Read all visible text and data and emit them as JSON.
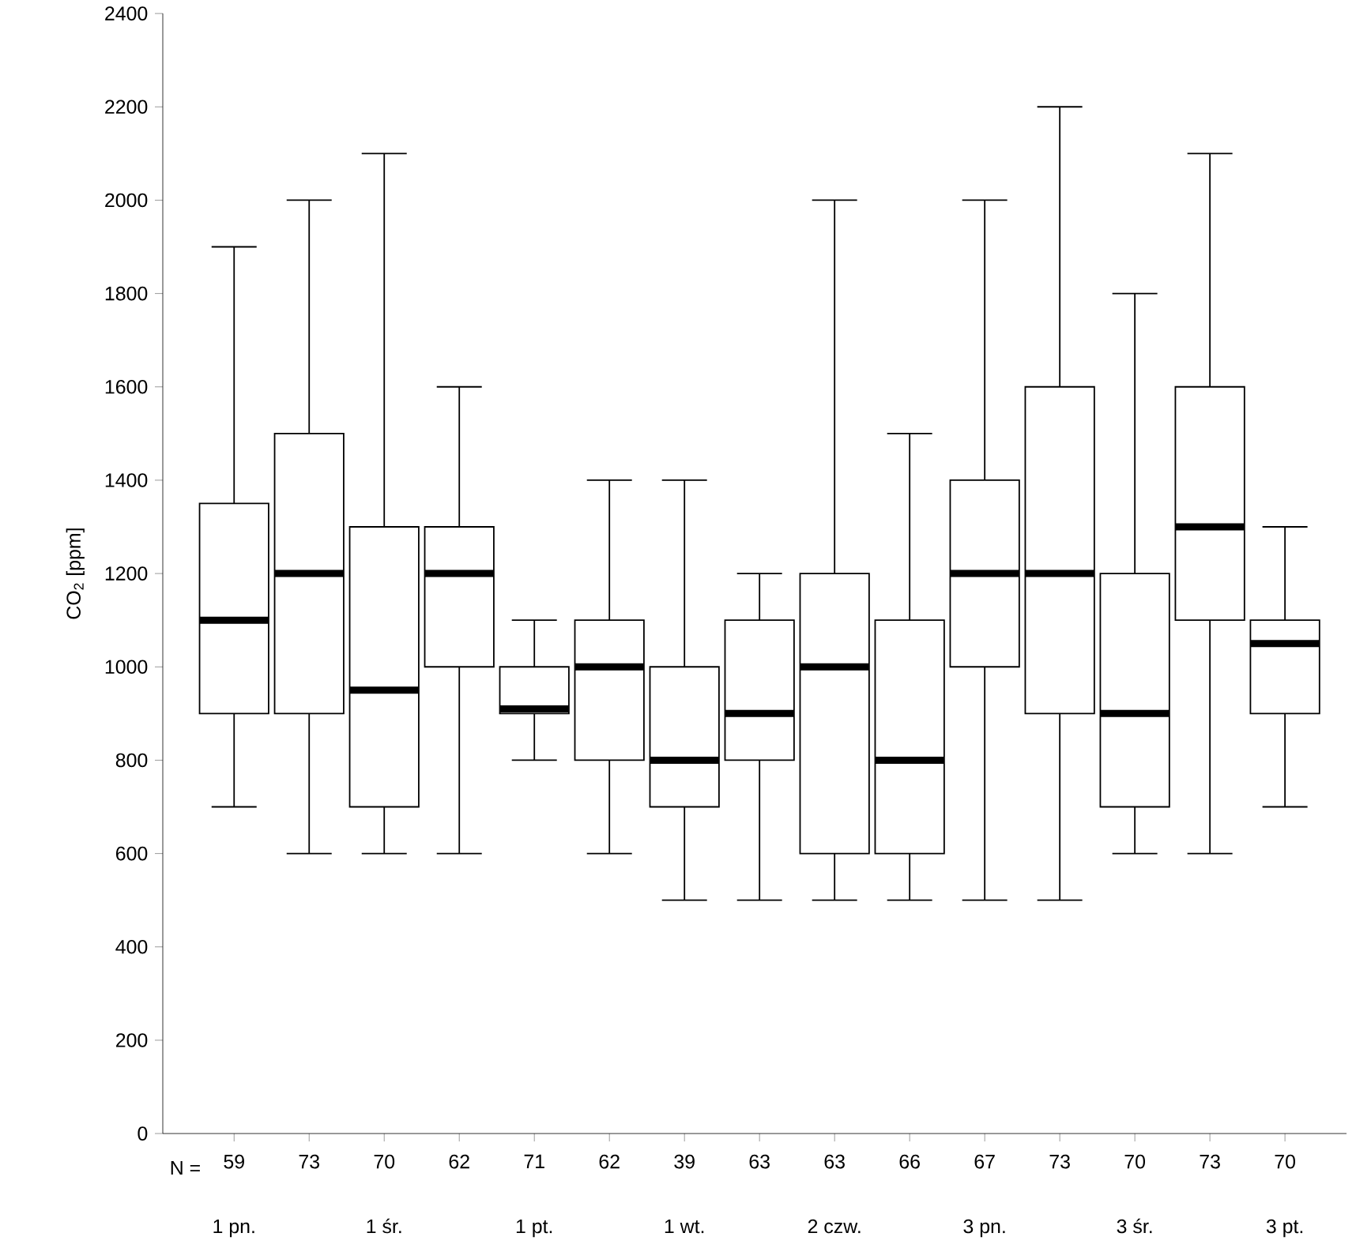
{
  "chart_data": {
    "type": "box",
    "ylabel": "CO$_{2}$ [ppm]",
    "categories": [
      "59",
      "73",
      "70",
      "62",
      "71",
      "62",
      "39",
      "63",
      "63",
      "66",
      "67",
      "73",
      "70",
      "73",
      "70"
    ],
    "annotations": [
      "N =",
      "1 pn.",
      "1 śr.",
      "1 pt.",
      "1 wt.",
      "2 czw.",
      "3 pn.",
      "3 śr.",
      "3 pt."
    ],
    "ylim": [
      0,
      2400
    ],
    "yticks": [
      0,
      200,
      400,
      600,
      800,
      1000,
      1200,
      1400,
      1600,
      1800,
      2000,
      2200,
      2400
    ],
    "grid": false,
    "boxes": [
      {
        "low": 700,
        "q1": 900,
        "median": 1100,
        "q3": 1350,
        "high": 1900
      },
      {
        "low": 600,
        "q1": 900,
        "median": 1200,
        "q3": 1500,
        "high": 2000
      },
      {
        "low": 600,
        "q1": 700,
        "median": 950,
        "q3": 1300,
        "high": 2100
      },
      {
        "low": 600,
        "q1": 1000,
        "median": 1200,
        "q3": 1300,
        "high": 1600
      },
      {
        "low": 800,
        "q1": 900,
        "median": 910,
        "q3": 1000,
        "high": 1100
      },
      {
        "low": 600,
        "q1": 800,
        "median": 1000,
        "q3": 1100,
        "high": 1400
      },
      {
        "low": 500,
        "q1": 700,
        "median": 800,
        "q3": 1000,
        "high": 1400
      },
      {
        "low": 500,
        "q1": 800,
        "median": 900,
        "q3": 1100,
        "high": 1200
      },
      {
        "low": 500,
        "q1": 600,
        "median": 1000,
        "q3": 1200,
        "high": 2000
      },
      {
        "low": 500,
        "q1": 600,
        "median": 800,
        "q3": 1100,
        "high": 1500
      },
      {
        "low": 500,
        "q1": 1000,
        "median": 1200,
        "q3": 1400,
        "high": 2000
      },
      {
        "low": 500,
        "q1": 900,
        "median": 1200,
        "q3": 1600,
        "high": 2200
      },
      {
        "low": 600,
        "q1": 700,
        "median": 900,
        "q3": 1200,
        "high": 1800
      },
      {
        "low": 600,
        "q1": 1100,
        "median": 1300,
        "q3": 1600,
        "high": 2100
      },
      {
        "low": 700,
        "q1": 900,
        "median": 1050,
        "q3": 1100,
        "high": 1300
      }
    ]
  }
}
